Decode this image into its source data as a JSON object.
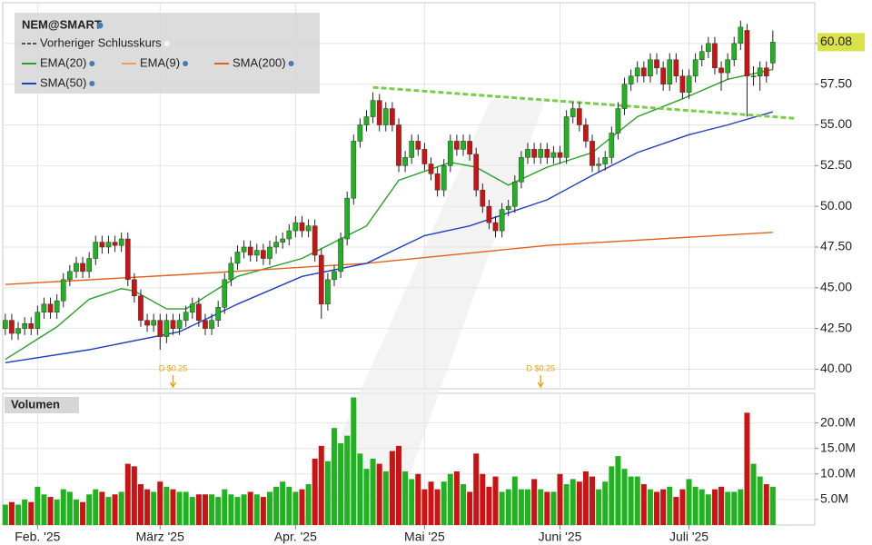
{
  "chart_data": {
    "type": "candlestick",
    "title": "NEM@SMART",
    "xlim": [
      -0.4,
      125.5
    ],
    "ylim": [
      38.8,
      62.5
    ],
    "xticks": [
      {
        "value": 5,
        "label": "Feb. '25"
      },
      {
        "value": 24,
        "label": "März '25"
      },
      {
        "value": 45,
        "label": "Apr. '25"
      },
      {
        "value": 65,
        "label": "Mai '25"
      },
      {
        "value": 86,
        "label": "Juni '25"
      },
      {
        "value": 106,
        "label": "Juli '25"
      }
    ],
    "yticks": [
      {
        "value": 40,
        "label": "40.00"
      },
      {
        "value": 42.5,
        "label": "42.50"
      },
      {
        "value": 45,
        "label": "45.00"
      },
      {
        "value": 47.5,
        "label": "47.50"
      },
      {
        "value": 50,
        "label": "50.00"
      },
      {
        "value": 52.5,
        "label": "52.50"
      },
      {
        "value": 55,
        "label": "55.00"
      },
      {
        "value": 57.5,
        "label": "57.50"
      },
      {
        "value": 60,
        "label": "60.00"
      }
    ],
    "grid": true,
    "up_color": "#1fb31f",
    "down_color": "#cc1212",
    "open": [
      42.5,
      43,
      42.2,
      42.5,
      42.8,
      42.5,
      43.5,
      44,
      43.5,
      44.2,
      45.5,
      46,
      46.5,
      46,
      46.8,
      47.8,
      47.5,
      47.8,
      47.6,
      48,
      45.5,
      44.5,
      43,
      42.7,
      43,
      42,
      43,
      42.5,
      43,
      43.5,
      44,
      43,
      42.5,
      43,
      43.8,
      45.5,
      46.5,
      47.2,
      47.5,
      47,
      47.3,
      46.8,
      47.5,
      47.8,
      48,
      48.5,
      49,
      48.5,
      48.8,
      47,
      44,
      45.5,
      46,
      48,
      50.5,
      54,
      55,
      55.5,
      56.5,
      55,
      56,
      55,
      52.5,
      53,
      54,
      53.5,
      52.6,
      52,
      51,
      52.5,
      54,
      53.5,
      54,
      53.2,
      51,
      50,
      49,
      48.5,
      49.8,
      50,
      51.5,
      53,
      53.5,
      53,
      53.5,
      53,
      53.3,
      53,
      55.5,
      56,
      55,
      54,
      52.5,
      52.6,
      53,
      54.5,
      56,
      57.5,
      58,
      58.5,
      58,
      59,
      58.5,
      57.5,
      59,
      58,
      57,
      58,
      59,
      59.5,
      60,
      58.5,
      58.2,
      59,
      60,
      60.8,
      58,
      58,
      58.5,
      58.8
    ],
    "high": [
      43.4,
      43.4,
      42.9,
      43.2,
      43.2,
      43.9,
      44.4,
      44.4,
      44.6,
      45.9,
      46.4,
      46.9,
      46.9,
      47.2,
      48.2,
      48.2,
      48.2,
      48.2,
      48.4,
      48.4,
      45.9,
      44.9,
      43.4,
      43.4,
      43.4,
      43.4,
      43.4,
      43.4,
      43.9,
      44.4,
      44.4,
      43.4,
      43.4,
      44.2,
      45.9,
      46.9,
      47.6,
      47.9,
      47.9,
      47.7,
      47.7,
      47.9,
      48.2,
      48.4,
      48.9,
      49.4,
      49.4,
      49.2,
      49.2,
      47.4,
      45.9,
      46.4,
      48.4,
      50.9,
      54.4,
      55.4,
      55.9,
      57,
      56.9,
      56.4,
      56.4,
      55.4,
      53.4,
      54.4,
      54.4,
      53.9,
      53,
      52.4,
      52.9,
      54.4,
      54.4,
      54.4,
      54.4,
      53.6,
      51.4,
      50.4,
      49.4,
      50.2,
      50.4,
      51.9,
      53.4,
      53.9,
      53.9,
      53.9,
      53.9,
      53.7,
      53.7,
      55.9,
      56.4,
      56.4,
      55.4,
      54.4,
      53,
      53.4,
      54.9,
      56.4,
      57.9,
      58.4,
      58.9,
      58.9,
      59.4,
      59.4,
      58.9,
      59.4,
      59.4,
      58.4,
      58.4,
      59.4,
      59.9,
      60.4,
      60.4,
      58.9,
      59.4,
      60.4,
      61.4,
      61.2,
      58.6,
      58.9,
      58.9,
      60.8
    ],
    "low": [
      42.1,
      41.8,
      41.8,
      42.1,
      42.1,
      42.1,
      43.1,
      43.1,
      43.1,
      43.8,
      45.1,
      45.6,
      45.6,
      45.6,
      46.4,
      47.1,
      47.1,
      47.2,
      47.2,
      45.1,
      44.1,
      42.6,
      42.3,
      42.3,
      41.2,
      41.6,
      42.1,
      42.1,
      42.6,
      43.1,
      42.6,
      42.1,
      42.1,
      42.6,
      43.4,
      45.1,
      46.1,
      46.8,
      46.6,
      46.6,
      46.4,
      46.4,
      47.1,
      47.4,
      47.6,
      48.1,
      48.1,
      48.1,
      46.6,
      43.1,
      43.6,
      45.1,
      45.6,
      47.6,
      50.1,
      53.6,
      54.6,
      55.1,
      54.6,
      54.6,
      54.6,
      52.1,
      52.1,
      52.6,
      53.1,
      52.2,
      51.6,
      50.6,
      50.6,
      52.1,
      53.1,
      53.1,
      52.8,
      50.6,
      49.6,
      48.6,
      48.1,
      48.1,
      49.4,
      49.6,
      51.1,
      52.6,
      52.6,
      52.6,
      52.6,
      52.6,
      52.6,
      52.6,
      55.1,
      54.6,
      53.6,
      52.1,
      52.1,
      52.2,
      52.6,
      54.1,
      55.6,
      57.1,
      57.6,
      57.6,
      57.6,
      58.1,
      57.1,
      57.1,
      57.6,
      56.6,
      56.6,
      57.6,
      58.6,
      59.1,
      58.1,
      57.1,
      57.8,
      58.6,
      59.6,
      55.5,
      57.4,
      57.1,
      57.6,
      58.4
    ],
    "close": [
      43,
      42.2,
      42.5,
      42.8,
      42.5,
      43.5,
      44,
      43.5,
      44.2,
      45.5,
      46,
      46.5,
      46,
      46.8,
      47.8,
      47.5,
      47.8,
      47.6,
      48,
      45.5,
      44.5,
      43,
      42.7,
      43,
      42,
      43,
      42.5,
      43,
      43.5,
      44,
      43,
      42.5,
      43,
      43.8,
      45.5,
      46.5,
      47.2,
      47.5,
      47,
      47.3,
      46.8,
      47.5,
      47.8,
      48,
      48.5,
      49,
      48.5,
      48.8,
      47,
      44,
      45.5,
      46,
      48,
      50.5,
      54,
      55,
      55.5,
      56.5,
      55,
      56,
      55,
      52.5,
      53,
      54,
      53.5,
      52.6,
      52,
      51,
      52.5,
      54,
      53.5,
      54,
      53.2,
      51,
      50,
      49,
      48.5,
      49.8,
      50,
      51.5,
      53,
      53.5,
      53,
      53.5,
      53,
      53.3,
      53,
      55.5,
      56,
      55,
      54,
      52.5,
      52.6,
      53,
      54.5,
      56,
      57.5,
      58,
      58.5,
      58,
      59,
      58.5,
      57.5,
      59,
      58,
      57,
      58,
      59,
      59.5,
      60,
      58.5,
      58.2,
      59,
      60,
      61,
      58,
      58,
      58.5,
      58,
      60.08
    ],
    "series": [
      {
        "name": "Vorheriger Schlusskurs",
        "color": "#555555"
      },
      {
        "name": "EMA(20)",
        "color": "#2aa02a",
        "x": [
          0,
          8,
          13,
          18,
          20,
          25,
          28,
          36,
          46,
          56,
          61,
          69,
          73,
          78,
          84,
          91,
          98,
          105,
          112,
          119
        ],
        "values": [
          40.6,
          42.6,
          44.3,
          44.95,
          44.8,
          43.7,
          43.7,
          45.7,
          46.8,
          48.8,
          51.6,
          52.7,
          52.4,
          51.3,
          52.4,
          53.3,
          55.5,
          56.6,
          57.8,
          58.4
        ]
      },
      {
        "name": "EMA(9)",
        "color": "#f0a050"
      },
      {
        "name": "SMA(200)",
        "color": "#e0621c",
        "x": [
          0,
          27,
          56,
          84,
          119
        ],
        "values": [
          45.2,
          45.8,
          46.5,
          47.6,
          48.4
        ]
      },
      {
        "name": "SMA(50)",
        "color": "#1e3fbf",
        "x": [
          0,
          13,
          27,
          36,
          46,
          56,
          65,
          72,
          84,
          91,
          98,
          106,
          112,
          119
        ],
        "values": [
          40.4,
          41.2,
          42.3,
          44.0,
          45.7,
          46.5,
          48.2,
          48.8,
          50.4,
          51.9,
          53.3,
          54.4,
          55.0,
          55.8
        ]
      }
    ],
    "trendline": {
      "color": "#7acc4a",
      "x": [
        57,
        122.5
      ],
      "values": [
        57.3,
        55.4
      ]
    },
    "annotations": [
      {
        "text": "D $0.25",
        "x": 26
      },
      {
        "text": "D $0.25",
        "x": 83
      }
    ],
    "volume": {
      "title": "Volumen",
      "ylim": [
        0,
        25.8
      ],
      "yticks": [
        {
          "value": 5,
          "label": "5.0M"
        },
        {
          "value": 10,
          "label": "10.0M"
        },
        {
          "value": 15,
          "label": "15.0M"
        },
        {
          "value": 20,
          "label": "20.0M"
        }
      ],
      "values": [
        4,
        4.5,
        4,
        5,
        4.5,
        7.5,
        6,
        5.5,
        5,
        7,
        6.5,
        5,
        4.5,
        6,
        7,
        6.5,
        5.5,
        6,
        6.5,
        12,
        11.5,
        8,
        7,
        6.5,
        8.5,
        7.5,
        7,
        6.5,
        6.5,
        5.5,
        6,
        6,
        6,
        5.5,
        7,
        6,
        5.5,
        6,
        6.5,
        6,
        5.5,
        6.5,
        7.5,
        8.5,
        7.5,
        6.5,
        7,
        8,
        13,
        15.5,
        12.5,
        19,
        16,
        17.5,
        25,
        14,
        11,
        13,
        12,
        10.5,
        14.5,
        15.5,
        10.5,
        9,
        10,
        7,
        8.5,
        7,
        8.5,
        10,
        10.5,
        8,
        6.5,
        14,
        10,
        7.5,
        9.5,
        6.5,
        7,
        9.5,
        7,
        7,
        9,
        7,
        6.5,
        6.5,
        10,
        8,
        9,
        8.5,
        10.5,
        9.5,
        7,
        8.5,
        11.5,
        13.5,
        11,
        9.5,
        9.5,
        8,
        7,
        6.5,
        7,
        7.5,
        5.5,
        7,
        9,
        7.5,
        7,
        6,
        7,
        7.5,
        6.5,
        6.5,
        7,
        22,
        12,
        9.5,
        8,
        7.5
      ]
    }
  }
}
